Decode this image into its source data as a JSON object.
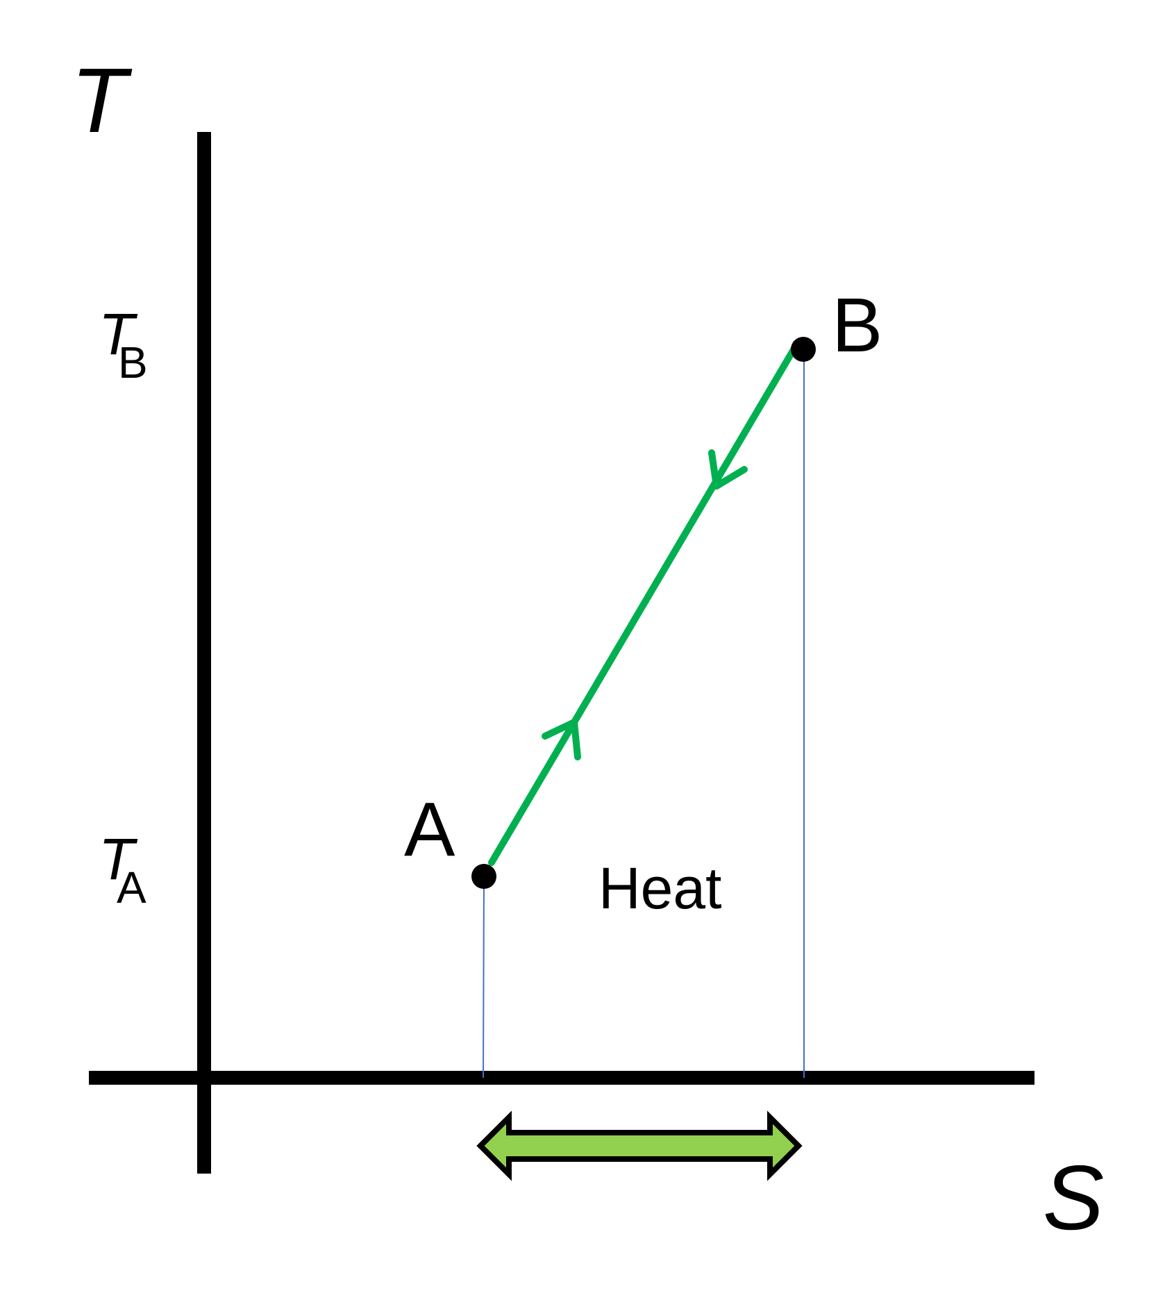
{
  "axes": {
    "y_label": "T",
    "x_label": "S"
  },
  "ticks": {
    "tb": {
      "symbol": "T",
      "subscript": "B"
    },
    "ta": {
      "symbol": "T",
      "subscript": "A"
    }
  },
  "points": {
    "a": {
      "label": "A"
    },
    "b": {
      "label": "B"
    }
  },
  "region": {
    "label": "Heat"
  },
  "colors": {
    "axis": "#000000",
    "path": "#00B050",
    "guide": "#4472C4",
    "arrow_fill": "#92D050",
    "arrow_stroke": "#000000"
  }
}
